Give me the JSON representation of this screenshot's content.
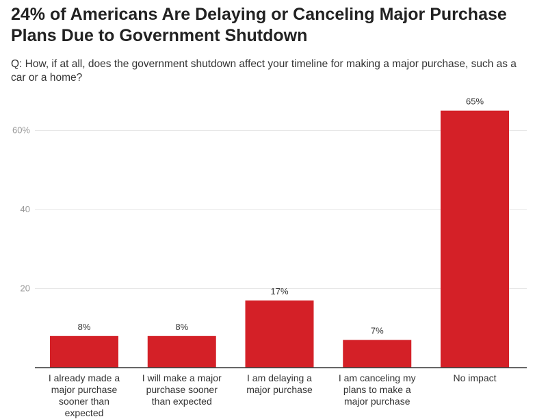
{
  "chart_data": {
    "type": "bar",
    "title": "24% of Americans Are Delaying or Canceling Major Purchase Plans Due to Government Shutdown",
    "subtitle": "Q: How, if at all, does the government shutdown affect your timeline for making a major purchase, such as a car or a home?",
    "categories": [
      "I already made a major purchase sooner than expected",
      "I will make a major purchase sooner than expected",
      "I am delaying a major purchase",
      "I am canceling my plans to make a major purchase",
      "No impact"
    ],
    "values": [
      8,
      8,
      17,
      7,
      65
    ],
    "data_labels": [
      "8%",
      "8%",
      "17%",
      "7%",
      "65%"
    ],
    "yticks": [
      {
        "value": 20,
        "label": "20"
      },
      {
        "value": 40,
        "label": "40"
      },
      {
        "value": 60,
        "label": "60%"
      }
    ],
    "ylim": [
      0,
      70
    ],
    "grid": true,
    "color": "#d42027"
  }
}
